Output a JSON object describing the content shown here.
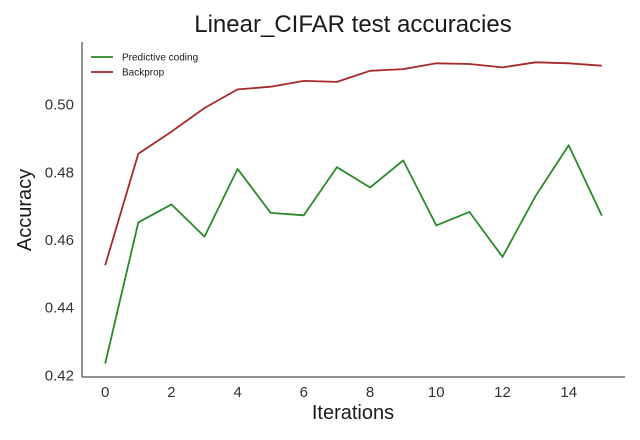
{
  "chart_data": {
    "type": "line",
    "title": "Linear_CIFAR test accuracies",
    "xlabel": "Iterations",
    "ylabel": "Accuracy",
    "x": [
      0,
      1,
      2,
      3,
      4,
      5,
      6,
      7,
      8,
      9,
      10,
      11,
      12,
      13,
      14,
      15
    ],
    "xlim": [
      -0.7,
      15.7
    ],
    "ylim": [
      0.4195,
      0.5185
    ],
    "xticks": [
      0,
      2,
      4,
      6,
      8,
      10,
      12,
      14
    ],
    "yticks": [
      0.42,
      0.44,
      0.46,
      0.48,
      0.5
    ],
    "ytick_labels": [
      "0.42",
      "0.44",
      "0.46",
      "0.48",
      "0.50"
    ],
    "grid": false,
    "legend_position": "top-left",
    "series": [
      {
        "name": "Predictive coding",
        "color": "#2a8a2a",
        "values": [
          0.4235,
          0.4652,
          0.4705,
          0.461,
          0.481,
          0.468,
          0.4673,
          0.4815,
          0.4755,
          0.4835,
          0.4643,
          0.4683,
          0.455,
          0.473,
          0.488,
          0.4672
        ]
      },
      {
        "name": "Backprop",
        "color": "#a52a2a",
        "values": [
          0.4525,
          0.4855,
          0.492,
          0.499,
          0.5045,
          0.5053,
          0.507,
          0.5067,
          0.51,
          0.5105,
          0.5122,
          0.512,
          0.511,
          0.5125,
          0.5122,
          0.5115
        ]
      }
    ]
  }
}
